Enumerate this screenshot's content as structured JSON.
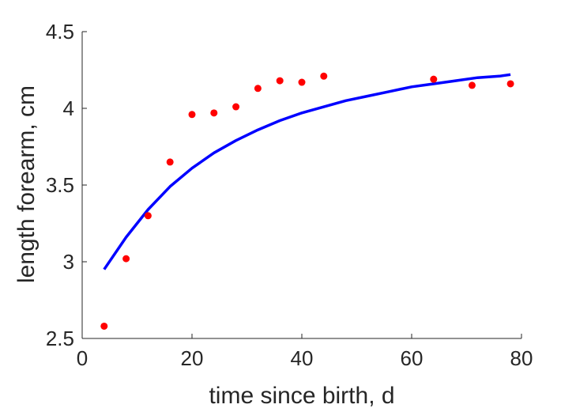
{
  "chart_data": {
    "type": "scatter",
    "title": "",
    "xlabel": "time since birth, d",
    "ylabel": "length forearm, cm",
    "xlim": [
      0,
      80
    ],
    "ylim": [
      2.5,
      4.5
    ],
    "xticks": [
      "0",
      "20",
      "40",
      "60",
      "80"
    ],
    "yticks": [
      "2.5",
      "3",
      "3.5",
      "4",
      "4.5"
    ],
    "grid": false,
    "legend": "none",
    "series": [
      {
        "kind": "points",
        "color": "#ff0000",
        "x": [
          4,
          8,
          12,
          16,
          20,
          24,
          28,
          32,
          36,
          40,
          44,
          64,
          71,
          78
        ],
        "y": [
          2.58,
          3.02,
          3.3,
          3.65,
          3.96,
          3.97,
          4.01,
          4.13,
          4.18,
          4.17,
          4.21,
          4.19,
          4.15,
          4.16
        ]
      },
      {
        "kind": "line",
        "color": "#0000ff",
        "x": [
          4,
          8,
          12,
          16,
          20,
          24,
          28,
          32,
          36,
          40,
          44,
          48,
          52,
          56,
          60,
          64,
          68,
          72,
          76,
          78
        ],
        "y": [
          2.95,
          3.16,
          3.34,
          3.49,
          3.61,
          3.71,
          3.79,
          3.86,
          3.92,
          3.97,
          4.01,
          4.05,
          4.08,
          4.11,
          4.14,
          4.16,
          4.18,
          4.2,
          4.21,
          4.22
        ]
      }
    ]
  }
}
